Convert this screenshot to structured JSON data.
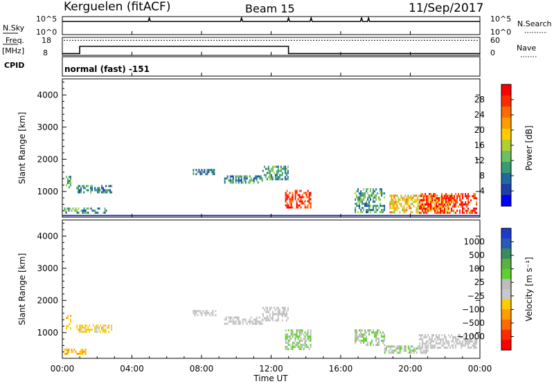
{
  "header": {
    "station": "Kerguelen (fitACF)",
    "beam": "Beam 15",
    "date": "11/Sep/2017"
  },
  "noise_panel": {
    "left_label": "N.Sky",
    "left_ticks": [
      "10^5",
      "10^0"
    ],
    "right_ticks": [
      "10^5",
      "10^0"
    ],
    "right_label": "N.Search"
  },
  "freq_panel": {
    "left_label_1": "Freq.",
    "left_label_2": "[MHz]",
    "left_ticks": [
      "18",
      "8"
    ],
    "right_ticks": [
      "60",
      "0"
    ],
    "right_label": "Nave"
  },
  "cpid_panel": {
    "label": "CPID",
    "text": "normal (fast) -151"
  },
  "x_axis": {
    "ticks": [
      "00:00",
      "04:00",
      "08:00",
      "12:00",
      "16:00",
      "20:00",
      "00:00"
    ],
    "title": "Time UT"
  },
  "power_colorbar": {
    "title": "Power [dB]",
    "ticks": [
      "28",
      "24",
      "20",
      "16",
      "12",
      "8",
      "4"
    ],
    "colors": [
      "#ff0000",
      "#ff2a00",
      "#ff6a00",
      "#ff9c00",
      "#ffcc00",
      "#b0d030",
      "#6cc060",
      "#3a9a70",
      "#1e6aa0",
      "#1e3ea8",
      "#0000ff"
    ]
  },
  "velocity_colorbar": {
    "title": "Velocity [m s⁻¹]",
    "ticks": [
      "1000",
      "500",
      "100",
      "25",
      "−25",
      "−100",
      "−500",
      "−1000"
    ],
    "colors": [
      "#1a3ccc",
      "#2a5ab8",
      "#3a8a60",
      "#5ab040",
      "#60d030",
      "#bdbdbd",
      "#c8c8c8",
      "#ffcc00",
      "#ff9c00",
      "#ff6a00",
      "#ff2a00",
      "#ff0000"
    ]
  },
  "chart_data": [
    {
      "type": "line",
      "name": "noise",
      "x_range_hours": [
        0,
        24
      ],
      "y_scale": "log",
      "ylim": [
        1,
        100000
      ],
      "spikes_hours": [
        5.0,
        10.3,
        13.0,
        14.3,
        17.2,
        17.6
      ],
      "baseline": "near 10^5 (flat)"
    },
    {
      "type": "line",
      "name": "frequency",
      "x_range_hours": [
        0,
        24
      ],
      "ylim": [
        8,
        18
      ],
      "x": [
        0.0,
        1.0,
        1.0,
        13.0,
        13.0,
        24.0
      ],
      "y": [
        9.0,
        9.0,
        13.0,
        13.0,
        9.0,
        9.0
      ],
      "nave_dotted_level": 50,
      "nave_range": [
        0,
        60
      ]
    },
    {
      "type": "heatmap",
      "name": "power",
      "xlabel": "Time UT",
      "ylabel": "Slant Range [km]",
      "x_range_hours": [
        0,
        24
      ],
      "ylim": [
        200,
        4500
      ],
      "yticks": [
        1000,
        2000,
        3000,
        4000
      ],
      "color_range_db": [
        0,
        30
      ],
      "regions": [
        {
          "t": [
            0.2,
            0.5
          ],
          "r": [
            1100,
            1550
          ],
          "db": 10
        },
        {
          "t": [
            0.8,
            2.8
          ],
          "r": [
            1000,
            1200
          ],
          "db": 8
        },
        {
          "t": [
            0.1,
            2.5
          ],
          "r": [
            350,
            500
          ],
          "db": 10
        },
        {
          "t": [
            7.5,
            8.8
          ],
          "r": [
            1550,
            1700
          ],
          "db": 8
        },
        {
          "t": [
            9.3,
            11.5
          ],
          "r": [
            1280,
            1500
          ],
          "db": 8
        },
        {
          "t": [
            11.5,
            13.0
          ],
          "r": [
            1400,
            1800
          ],
          "db": 10
        },
        {
          "t": [
            12.8,
            14.3
          ],
          "r": [
            500,
            1050
          ],
          "db": 26
        },
        {
          "t": [
            16.8,
            18.5
          ],
          "r": [
            350,
            1100
          ],
          "db": 10
        },
        {
          "t": [
            18.8,
            22.5
          ],
          "r": [
            350,
            900
          ],
          "db": 18
        },
        {
          "t": [
            20.5,
            23.8
          ],
          "r": [
            350,
            950
          ],
          "db": 26
        }
      ],
      "ground_scatter_line_km": 250
    },
    {
      "type": "heatmap",
      "name": "velocity",
      "xlabel": "Time UT",
      "ylabel": "Slant Range [km]",
      "x_range_hours": [
        0,
        24
      ],
      "ylim": [
        200,
        4500
      ],
      "yticks": [
        1000,
        2000,
        3000,
        4000
      ],
      "color_range_ms": [
        -1000,
        1000
      ],
      "regions": [
        {
          "t": [
            0.2,
            0.5
          ],
          "r": [
            1100,
            1550
          ],
          "v": -300
        },
        {
          "t": [
            0.8,
            2.8
          ],
          "r": [
            1000,
            1250
          ],
          "v": -200
        },
        {
          "t": [
            0.1,
            1.3
          ],
          "r": [
            350,
            500
          ],
          "v": -300
        },
        {
          "t": [
            7.5,
            8.8
          ],
          "r": [
            1550,
            1700
          ],
          "v": 0
        },
        {
          "t": [
            9.3,
            11.5
          ],
          "r": [
            1300,
            1500
          ],
          "v": 0
        },
        {
          "t": [
            11.5,
            13.0
          ],
          "r": [
            1400,
            1800
          ],
          "v": 0
        },
        {
          "t": [
            12.8,
            14.3
          ],
          "r": [
            500,
            1100
          ],
          "v": 150
        },
        {
          "t": [
            16.8,
            18.5
          ],
          "r": [
            600,
            1100
          ],
          "v": 150
        },
        {
          "t": [
            18.5,
            21.0
          ],
          "r": [
            350,
            600
          ],
          "v": 100
        },
        {
          "t": [
            20.5,
            23.8
          ],
          "r": [
            550,
            950
          ],
          "v": 0
        }
      ]
    }
  ]
}
